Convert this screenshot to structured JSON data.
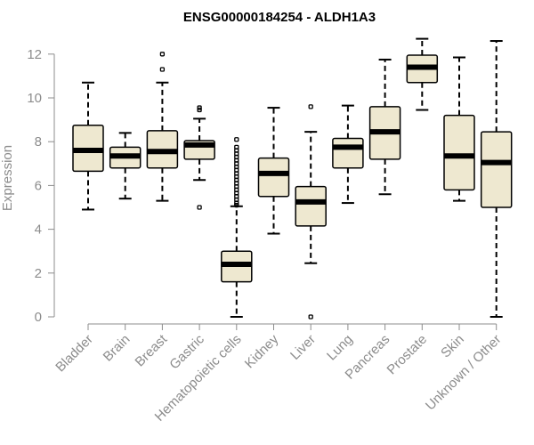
{
  "chart_data": {
    "type": "boxplot",
    "title": "ENSG00000184254 - ALDH1A3",
    "xlabel": "",
    "ylabel": "Expression",
    "ylim": [
      0,
      12.6
    ],
    "yticks": [
      0,
      2,
      4,
      6,
      8,
      10,
      12
    ],
    "box_color": "#EEE8D0",
    "categories": [
      "Bladder",
      "Brain",
      "Breast",
      "Gastric",
      "Hematopoietic cells",
      "Kidney",
      "Liver",
      "Lung",
      "Pancreas",
      "Prostate",
      "Skin",
      "Unknown / Other"
    ],
    "boxes": [
      {
        "name": "Bladder",
        "whisker_low": 4.9,
        "q1": 6.65,
        "median": 7.6,
        "q3": 8.75,
        "whisker_high": 10.7,
        "outliers": []
      },
      {
        "name": "Brain",
        "whisker_low": 5.4,
        "q1": 6.8,
        "median": 7.35,
        "q3": 7.75,
        "whisker_high": 8.4,
        "outliers": []
      },
      {
        "name": "Breast",
        "whisker_low": 5.3,
        "q1": 6.8,
        "median": 7.55,
        "q3": 8.5,
        "whisker_high": 10.7,
        "outliers": [
          11.3,
          12.0
        ]
      },
      {
        "name": "Gastric",
        "whisker_low": 6.25,
        "q1": 7.2,
        "median": 7.85,
        "q3": 8.05,
        "whisker_high": 9.05,
        "outliers": [
          5.0,
          9.45,
          9.55
        ]
      },
      {
        "name": "Hematopoietic cells",
        "whisker_low": 0.0,
        "q1": 1.6,
        "median": 2.4,
        "q3": 3.0,
        "whisker_high": 5.05,
        "outliers": [
          5.1,
          5.2,
          5.35,
          5.5,
          5.65,
          5.8,
          5.95,
          6.1,
          6.25,
          6.4,
          6.55,
          6.7,
          6.85,
          7.0,
          7.15,
          7.3,
          7.45,
          7.6,
          7.75,
          8.1
        ]
      },
      {
        "name": "Kidney",
        "whisker_low": 3.8,
        "q1": 5.5,
        "median": 6.55,
        "q3": 7.25,
        "whisker_high": 9.55,
        "outliers": []
      },
      {
        "name": "Liver",
        "whisker_low": 2.45,
        "q1": 4.15,
        "median": 5.25,
        "q3": 5.95,
        "whisker_high": 8.45,
        "outliers": [
          0.0,
          9.6
        ]
      },
      {
        "name": "Lung",
        "whisker_low": 5.2,
        "q1": 6.8,
        "median": 7.75,
        "q3": 8.15,
        "whisker_high": 9.65,
        "outliers": []
      },
      {
        "name": "Pancreas",
        "whisker_low": 5.6,
        "q1": 7.2,
        "median": 8.45,
        "q3": 9.6,
        "whisker_high": 11.75,
        "outliers": []
      },
      {
        "name": "Prostate",
        "whisker_low": 9.45,
        "q1": 10.7,
        "median": 11.4,
        "q3": 11.95,
        "whisker_high": 12.7,
        "outliers": []
      },
      {
        "name": "Skin",
        "whisker_low": 5.3,
        "q1": 5.8,
        "median": 7.35,
        "q3": 9.2,
        "whisker_high": 11.85,
        "outliers": []
      },
      {
        "name": "Unknown / Other",
        "whisker_low": 0.0,
        "q1": 5.0,
        "median": 7.05,
        "q3": 8.45,
        "whisker_high": 12.6,
        "outliers": []
      }
    ]
  }
}
